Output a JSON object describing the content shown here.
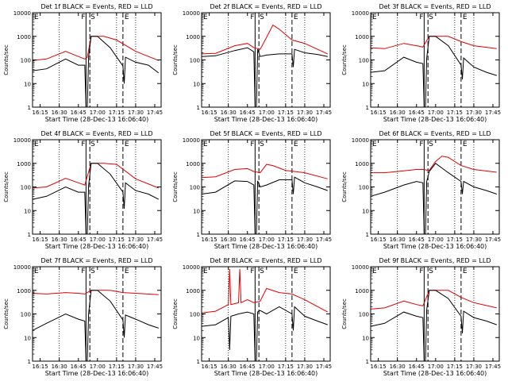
{
  "figure": {
    "x_ticks": [
      "16:15",
      "16:30",
      "16:45",
      "17:00",
      "17:15",
      "17:30",
      "17:45"
    ],
    "y_ticks": [
      "1",
      "10",
      "100",
      "1000",
      "10000"
    ],
    "ylabel": "Counts/sec",
    "marker_labels": [
      "F",
      "S",
      "E"
    ],
    "colors": {
      "events": "#000000",
      "lld": "#e00000",
      "axes": "#000000"
    }
  },
  "chart_data": [
    {
      "type": "line",
      "title": "Det 1f BLACK = Events, RED = LLD",
      "xlabel": "Start Time (28-Dec-13 16:06:40)",
      "ylabel": "Counts/sec",
      "xlim": [
        "16:09",
        "17:50"
      ],
      "ylim": [
        1,
        10000
      ],
      "yscale": "log",
      "markers": {
        "F": "16:51",
        "S": "16:54",
        "E": "17:20"
      },
      "series": [
        {
          "name": "BLACK = Events",
          "color": "#000000",
          "x": [
            "16:09",
            "16:20",
            "16:35",
            "16:45",
            "16:50",
            "16:51",
            "16:52",
            "16:53",
            "16:55",
            "17:00",
            "17:10",
            "17:20",
            "17:21",
            "17:22",
            "17:30",
            "17:40",
            "17:48"
          ],
          "values": [
            35,
            42,
            110,
            60,
            60,
            1,
            1,
            130,
            1000,
            1000,
            330,
            55,
            10,
            130,
            80,
            60,
            28
          ]
        },
        {
          "name": "RED = LLD",
          "color": "#e00000",
          "x": [
            "16:09",
            "16:20",
            "16:35",
            "16:45",
            "16:50",
            "16:52",
            "16:55",
            "17:00",
            "17:05",
            "17:15",
            "17:30",
            "17:48"
          ],
          "values": [
            95,
            110,
            230,
            140,
            110,
            130,
            1000,
            1000,
            1000,
            700,
            230,
            95
          ]
        }
      ]
    },
    {
      "type": "line",
      "title": "Det 2f BLACK = Events, RED = LLD",
      "xlabel": "Start Time (28-Dec-13 16:06:40)",
      "ylabel": "Counts/sec",
      "xlim": [
        "16:09",
        "17:50"
      ],
      "ylim": [
        1,
        10000
      ],
      "yscale": "log",
      "markers": {
        "F": "16:51",
        "S": "16:54",
        "E": "17:20"
      },
      "series": [
        {
          "name": "BLACK = Events",
          "color": "#000000",
          "x": [
            "16:09",
            "16:20",
            "16:35",
            "16:45",
            "16:50",
            "16:51",
            "16:52",
            "16:53",
            "16:55",
            "17:00",
            "17:10",
            "17:20",
            "17:21",
            "17:22",
            "17:30",
            "17:40",
            "17:48"
          ],
          "values": [
            140,
            150,
            250,
            330,
            220,
            1,
            1,
            280,
            140,
            160,
            180,
            180,
            50,
            280,
            200,
            170,
            140
          ]
        },
        {
          "name": "RED = LLD",
          "color": "#e00000",
          "x": [
            "16:09",
            "16:20",
            "16:35",
            "16:45",
            "16:50",
            "16:55",
            "17:00",
            "17:05",
            "17:10",
            "17:20",
            "17:30",
            "17:48"
          ],
          "values": [
            180,
            190,
            400,
            500,
            330,
            280,
            900,
            3000,
            2000,
            700,
            500,
            180
          ]
        }
      ]
    },
    {
      "type": "line",
      "title": "Det 3f BLACK = Events, RED = LLD",
      "xlabel": "Start Time (28-Dec-13 16:06:40)",
      "ylabel": "Counts/sec",
      "xlim": [
        "16:09",
        "17:50"
      ],
      "ylim": [
        1,
        10000
      ],
      "yscale": "log",
      "markers": {
        "F": "16:51",
        "S": "16:54",
        "E": "17:20"
      },
      "series": [
        {
          "name": "BLACK = Events",
          "color": "#000000",
          "x": [
            "16:09",
            "16:20",
            "16:35",
            "16:45",
            "16:50",
            "16:51",
            "16:52",
            "16:53",
            "16:55",
            "17:00",
            "17:10",
            "17:20",
            "17:21",
            "17:22",
            "17:30",
            "17:40",
            "17:48"
          ],
          "values": [
            30,
            35,
            130,
            80,
            70,
            1,
            1,
            120,
            1000,
            1000,
            400,
            60,
            15,
            120,
            50,
            30,
            22
          ]
        },
        {
          "name": "RED = LLD",
          "color": "#e00000",
          "x": [
            "16:09",
            "16:20",
            "16:35",
            "16:45",
            "16:50",
            "16:55",
            "17:00",
            "17:10",
            "17:20",
            "17:30",
            "17:48"
          ],
          "values": [
            330,
            300,
            500,
            400,
            350,
            1000,
            1000,
            1000,
            600,
            400,
            300
          ]
        }
      ]
    },
    {
      "type": "line",
      "title": "Det 4f BLACK = Events, RED = LLD",
      "xlabel": "Start Time (28-Dec-13 16:06:40)",
      "ylabel": "Counts/sec",
      "xlim": [
        "16:09",
        "17:50"
      ],
      "ylim": [
        1,
        10000
      ],
      "yscale": "log",
      "markers": {
        "F": "16:51",
        "S": "16:54",
        "E": "17:20"
      },
      "series": [
        {
          "name": "BLACK = Events",
          "color": "#000000",
          "x": [
            "16:09",
            "16:20",
            "16:35",
            "16:45",
            "16:50",
            "16:51",
            "16:52",
            "16:53",
            "16:55",
            "17:00",
            "17:10",
            "17:20",
            "17:21",
            "17:22",
            "17:30",
            "17:40",
            "17:48"
          ],
          "values": [
            30,
            40,
            100,
            60,
            60,
            1,
            1,
            110,
            1000,
            1000,
            350,
            60,
            12,
            150,
            70,
            50,
            30
          ]
        },
        {
          "name": "RED = LLD",
          "color": "#e00000",
          "x": [
            "16:09",
            "16:20",
            "16:35",
            "16:45",
            "16:50",
            "16:55",
            "17:00",
            "17:05",
            "17:15",
            "17:30",
            "17:48"
          ],
          "values": [
            90,
            100,
            230,
            150,
            120,
            1000,
            1000,
            1000,
            900,
            220,
            90
          ]
        }
      ]
    },
    {
      "type": "line",
      "title": "Det 5f BLACK = Events, RED = LLD",
      "xlabel": "Start Time (28-Dec-13 16:06:40)",
      "ylabel": "Counts/sec",
      "xlim": [
        "16:09",
        "17:50"
      ],
      "ylim": [
        1,
        10000
      ],
      "yscale": "log",
      "markers": {
        "F": "16:51",
        "S": "16:54",
        "E": "17:20"
      },
      "series": [
        {
          "name": "BLACK = Events",
          "color": "#000000",
          "x": [
            "16:09",
            "16:20",
            "16:35",
            "16:45",
            "16:50",
            "16:51",
            "16:52",
            "16:53",
            "16:55",
            "17:00",
            "17:10",
            "17:20",
            "17:21",
            "17:22",
            "17:30",
            "17:40",
            "17:48"
          ],
          "values": [
            50,
            60,
            180,
            170,
            120,
            1,
            1,
            180,
            100,
            120,
            200,
            200,
            50,
            260,
            150,
            100,
            70
          ]
        },
        {
          "name": "RED = LLD",
          "color": "#e00000",
          "x": [
            "16:09",
            "16:20",
            "16:35",
            "16:45",
            "16:50",
            "16:55",
            "17:00",
            "17:05",
            "17:15",
            "17:30",
            "17:48"
          ],
          "values": [
            250,
            270,
            550,
            600,
            450,
            400,
            900,
            800,
            500,
            400,
            220
          ]
        }
      ]
    },
    {
      "type": "line",
      "title": "Det 6f BLACK = Events, RED = LLD",
      "xlabel": "Start Time (28-Dec-13 16:06:40)",
      "ylabel": "Counts/sec",
      "xlim": [
        "16:09",
        "17:50"
      ],
      "ylim": [
        1,
        10000
      ],
      "yscale": "log",
      "markers": {
        "F": "16:51",
        "S": "16:54",
        "E": "17:20"
      },
      "series": [
        {
          "name": "BLACK = Events",
          "color": "#000000",
          "x": [
            "16:09",
            "16:20",
            "16:35",
            "16:45",
            "16:50",
            "16:51",
            "16:52",
            "16:53",
            "16:55",
            "17:00",
            "17:10",
            "17:20",
            "17:21",
            "17:22",
            "17:30",
            "17:40",
            "17:48"
          ],
          "values": [
            40,
            60,
            120,
            170,
            150,
            1,
            1,
            170,
            450,
            1000,
            400,
            170,
            50,
            170,
            100,
            70,
            50
          ]
        },
        {
          "name": "RED = LLD",
          "color": "#e00000",
          "x": [
            "16:09",
            "16:20",
            "16:35",
            "16:45",
            "16:50",
            "16:55",
            "17:00",
            "17:05",
            "17:10",
            "17:20",
            "17:30",
            "17:48"
          ],
          "values": [
            400,
            400,
            480,
            550,
            550,
            500,
            1200,
            2000,
            1800,
            800,
            550,
            420
          ]
        }
      ]
    },
    {
      "type": "line",
      "title": "Det 7f BLACK = Events, RED = LLD",
      "xlabel": "Start Time (28-Dec-13 16:06:40)",
      "ylabel": "Counts/sec",
      "xlim": [
        "16:09",
        "17:50"
      ],
      "ylim": [
        1,
        10000
      ],
      "yscale": "log",
      "markers": {
        "F": "16:51",
        "S": "16:54",
        "E": "17:20"
      },
      "series": [
        {
          "name": "BLACK = Events",
          "color": "#000000",
          "x": [
            "16:09",
            "16:20",
            "16:35",
            "16:45",
            "16:50",
            "16:51",
            "16:52",
            "16:53",
            "16:55",
            "17:00",
            "17:10",
            "17:20",
            "17:21",
            "17:22",
            "17:30",
            "17:40",
            "17:48"
          ],
          "values": [
            20,
            40,
            100,
            60,
            50,
            1,
            1,
            100,
            1000,
            1000,
            350,
            55,
            10,
            90,
            60,
            35,
            25
          ]
        },
        {
          "name": "RED = LLD",
          "color": "#e00000",
          "x": [
            "16:09",
            "16:20",
            "16:35",
            "16:45",
            "16:50",
            "16:55",
            "17:00",
            "17:10",
            "17:20",
            "17:30",
            "17:48"
          ],
          "values": [
            750,
            700,
            800,
            750,
            700,
            1000,
            1000,
            1000,
            800,
            750,
            650
          ]
        }
      ]
    },
    {
      "type": "line",
      "title": "Det 8f BLACK = Events, RED = LLD",
      "xlabel": "Start Time (28-Dec-13 16:06:40)",
      "ylabel": "Counts/sec",
      "xlim": [
        "16:09",
        "17:50"
      ],
      "ylim": [
        1,
        10000
      ],
      "yscale": "log",
      "markers": {
        "F": "16:51",
        "S": "16:54",
        "E": "17:20"
      },
      "series": [
        {
          "name": "BLACK = Events",
          "color": "#000000",
          "x": [
            "16:09",
            "16:20",
            "16:30",
            "16:31",
            "16:32",
            "16:38",
            "16:45",
            "16:50",
            "16:51",
            "16:52",
            "16:53",
            "16:55",
            "17:00",
            "17:10",
            "17:20",
            "17:21",
            "17:22",
            "17:30",
            "17:40",
            "17:48"
          ],
          "values": [
            30,
            35,
            70,
            3,
            80,
            100,
            120,
            100,
            1,
            1,
            120,
            140,
            100,
            200,
            100,
            20,
            200,
            80,
            50,
            35
          ]
        },
        {
          "name": "RED = LLD",
          "color": "#e00000",
          "x": [
            "16:09",
            "16:20",
            "16:30",
            "16:31",
            "16:32",
            "16:38",
            "16:39",
            "16:40",
            "16:45",
            "16:50",
            "16:55",
            "17:00",
            "17:10",
            "17:20",
            "17:30",
            "17:48"
          ],
          "values": [
            110,
            130,
            250,
            8000,
            250,
            300,
            8000,
            300,
            400,
            300,
            350,
            1200,
            800,
            700,
            400,
            120
          ]
        }
      ]
    },
    {
      "type": "line",
      "title": "Det 9f BLACK = Events, RED = LLD",
      "xlabel": "Start Time (28-Dec-13 16:06:40)",
      "ylabel": "Counts/sec",
      "xlim": [
        "16:09",
        "17:50"
      ],
      "ylim": [
        1,
        10000
      ],
      "yscale": "log",
      "markers": {
        "F": "16:51",
        "S": "16:54",
        "E": "17:20"
      },
      "series": [
        {
          "name": "BLACK = Events",
          "color": "#000000",
          "x": [
            "16:09",
            "16:20",
            "16:35",
            "16:45",
            "16:50",
            "16:51",
            "16:52",
            "16:53",
            "16:55",
            "17:00",
            "17:10",
            "17:20",
            "17:21",
            "17:22",
            "17:30",
            "17:40",
            "17:48"
          ],
          "values": [
            30,
            40,
            120,
            80,
            70,
            1,
            1,
            150,
            1000,
            1000,
            450,
            80,
            15,
            130,
            70,
            50,
            35
          ]
        },
        {
          "name": "RED = LLD",
          "color": "#e00000",
          "x": [
            "16:09",
            "16:20",
            "16:35",
            "16:45",
            "16:50",
            "16:55",
            "17:00",
            "17:10",
            "17:20",
            "17:30",
            "17:48"
          ],
          "values": [
            160,
            180,
            350,
            250,
            220,
            1000,
            1000,
            1000,
            500,
            300,
            180
          ]
        }
      ]
    }
  ]
}
